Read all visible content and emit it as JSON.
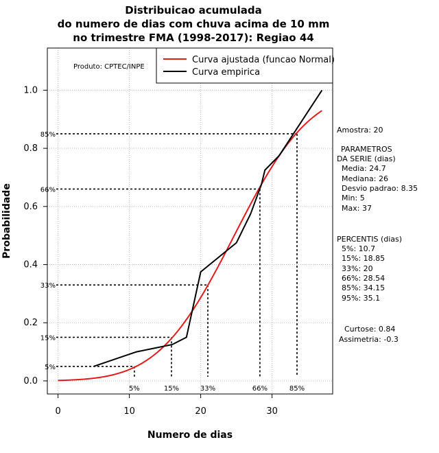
{
  "chart_data": {
    "type": "line",
    "title_lines": [
      "Distribuicao acumulada",
      "do numero de dias com chuva acima de 10 mm",
      "no trimestre FMA (1998-2017): Regiao 44"
    ],
    "xlabel": "Numero de dias",
    "ylabel": "Probabilidade",
    "xlim": [
      -1.5,
      38.5
    ],
    "ylim": [
      -0.045,
      1.145
    ],
    "xticks": [
      0,
      10,
      20,
      30
    ],
    "yticks": [
      0.0,
      0.2,
      0.4,
      0.6,
      0.8,
      1.0
    ],
    "xtick_labels": [
      "0",
      "10",
      "20",
      "30"
    ],
    "ytick_labels": [
      "0.0",
      "0.2",
      "0.4",
      "0.6",
      "0.8",
      "1.0"
    ],
    "grid": true,
    "producer_note": "Produto: CPTEC/INPE",
    "legend": {
      "position": "top-right",
      "entries": [
        "Curva ajustada (funcao Normal)",
        "Curva empirica"
      ]
    },
    "series": [
      {
        "name": "Curva ajustada (funcao Normal)",
        "color": "#e31a1c",
        "kind": "normal_cdf",
        "mean": 24.7,
        "sd": 8.35,
        "x_range": [
          0,
          37
        ]
      },
      {
        "name": "Curva empirica",
        "color": "#000000",
        "x": [
          5,
          11,
          16,
          18,
          20,
          25,
          27,
          28.5,
          29,
          31,
          33,
          35,
          37
        ],
        "y": [
          0.05,
          0.1,
          0.125,
          0.15,
          0.375,
          0.475,
          0.575,
          0.675,
          0.725,
          0.775,
          0.85,
          0.925,
          1.0
        ]
      }
    ],
    "percentile_markers": [
      {
        "label": "5%",
        "x": 10.7,
        "y": 0.05
      },
      {
        "label": "15%",
        "x": 15.9,
        "y": 0.15
      },
      {
        "label": "33%",
        "x": 21.0,
        "y": 0.33
      },
      {
        "label": "66%",
        "x": 28.3,
        "y": 0.66
      },
      {
        "label": "85%",
        "x": 33.5,
        "y": 0.85
      }
    ],
    "stats": {
      "amostra": "Amostra: 20",
      "parametros_header": "PARAMETROS",
      "parametros_sub": "DA SERIE (dias)",
      "parametros": [
        "Media: 24.7",
        "Mediana: 26",
        "Desvio padrao: 8.35",
        "Min: 5",
        "Max: 37"
      ],
      "percentis_header": "PERCENTIS (dias)",
      "percentis": [
        "5%: 10.7",
        "15%: 18.85",
        "33%: 20",
        "66%: 28.54",
        "85%: 34.15",
        "95%: 35.1"
      ],
      "curtose": "Curtose: 0.84",
      "assimetria": "Assimetria: -0.3"
    }
  }
}
